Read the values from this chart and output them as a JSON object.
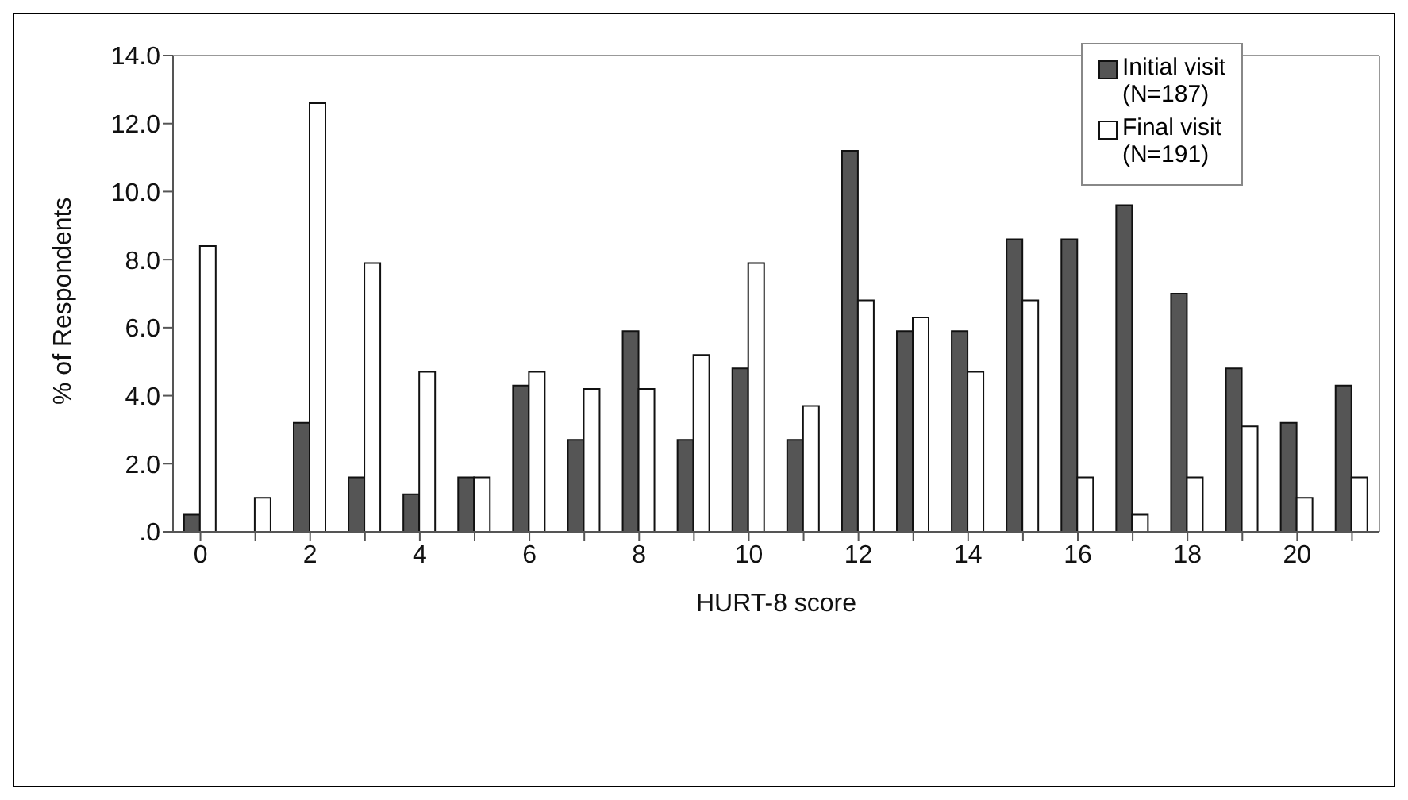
{
  "chart_data": {
    "type": "bar",
    "xlabel": "HURT-8 score",
    "ylabel": "% of Respondents",
    "categories": [
      "0",
      null,
      "2",
      null,
      "4",
      null,
      "6",
      null,
      "8",
      null,
      "10",
      null,
      "12",
      null,
      "14",
      null,
      "16",
      null,
      "18",
      null,
      "20",
      null
    ],
    "series": [
      {
        "name": "Initial visit (N=187)",
        "color": "#555555",
        "values": [
          0.5,
          0,
          3.2,
          1.6,
          1.1,
          1.6,
          4.3,
          2.7,
          5.9,
          2.7,
          4.8,
          2.7,
          11.2,
          5.9,
          5.9,
          8.6,
          8.6,
          9.6,
          7.0,
          4.8,
          3.2,
          4.3
        ]
      },
      {
        "name": "Final visit (N=191)",
        "color": "#ffffff",
        "values": [
          8.4,
          1.0,
          12.6,
          7.9,
          4.7,
          1.6,
          4.7,
          4.2,
          4.2,
          5.2,
          7.9,
          3.7,
          6.8,
          6.3,
          4.7,
          6.8,
          1.6,
          0.5,
          1.6,
          3.1,
          1.0,
          1.6
        ]
      }
    ],
    "ylim": [
      0,
      14
    ],
    "yticks": [
      {
        "value": 0,
        "label": ".0"
      },
      {
        "value": 2,
        "label": "2.0"
      },
      {
        "value": 4,
        "label": "4.0"
      },
      {
        "value": 6,
        "label": "6.0"
      },
      {
        "value": 8,
        "label": "8.0"
      },
      {
        "value": 10,
        "label": "10.0"
      },
      {
        "value": 12,
        "label": "12.0"
      },
      {
        "value": 14,
        "label": "14.0"
      }
    ],
    "grid": false,
    "legend": "top right"
  }
}
